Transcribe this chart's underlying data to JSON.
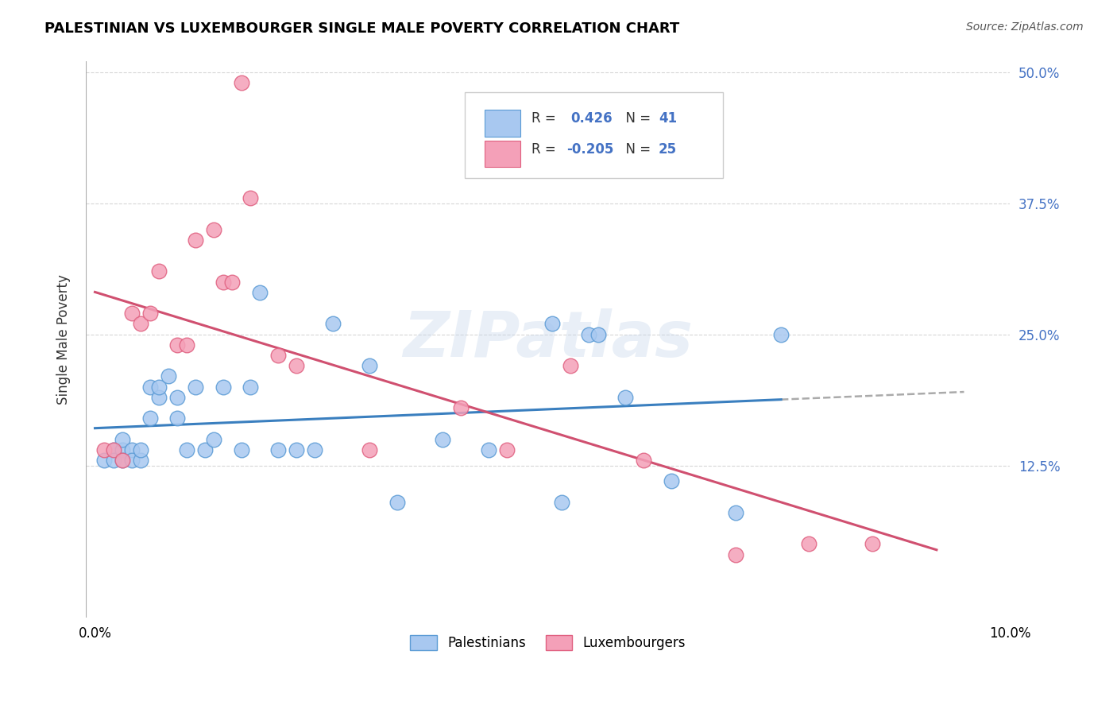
{
  "title": "PALESTINIAN VS LUXEMBOURGER SINGLE MALE POVERTY CORRELATION CHART",
  "source": "Source: ZipAtlas.com",
  "ylabel": "Single Male Poverty",
  "xlim": [
    0.0,
    0.1
  ],
  "ylim": [
    0.0,
    0.5
  ],
  "r_blue": 0.426,
  "n_blue": 41,
  "r_pink": -0.205,
  "n_pink": 25,
  "blue_color": "#A8C8F0",
  "pink_color": "#F4A0B8",
  "blue_edge_color": "#5B9BD5",
  "pink_edge_color": "#E06080",
  "blue_line_color": "#3A7FBF",
  "pink_line_color": "#D05070",
  "dash_color": "#AAAAAA",
  "watermark": "ZIPatlas",
  "legend_labels": [
    "Palestinians",
    "Luxembourgers"
  ],
  "palestinians_x": [
    0.001,
    0.002,
    0.002,
    0.003,
    0.003,
    0.003,
    0.004,
    0.004,
    0.005,
    0.005,
    0.006,
    0.006,
    0.007,
    0.007,
    0.008,
    0.009,
    0.009,
    0.01,
    0.011,
    0.012,
    0.013,
    0.014,
    0.016,
    0.017,
    0.018,
    0.02,
    0.022,
    0.024,
    0.026,
    0.03,
    0.033,
    0.038,
    0.043,
    0.05,
    0.051,
    0.054,
    0.055,
    0.058,
    0.063,
    0.07,
    0.075
  ],
  "palestinians_y": [
    0.13,
    0.14,
    0.13,
    0.14,
    0.13,
    0.15,
    0.14,
    0.13,
    0.13,
    0.14,
    0.2,
    0.17,
    0.19,
    0.2,
    0.21,
    0.17,
    0.19,
    0.14,
    0.2,
    0.14,
    0.15,
    0.2,
    0.14,
    0.2,
    0.29,
    0.14,
    0.14,
    0.14,
    0.26,
    0.22,
    0.09,
    0.15,
    0.14,
    0.26,
    0.09,
    0.25,
    0.25,
    0.19,
    0.11,
    0.08,
    0.25
  ],
  "luxembourgers_x": [
    0.001,
    0.002,
    0.003,
    0.004,
    0.005,
    0.006,
    0.007,
    0.009,
    0.01,
    0.011,
    0.013,
    0.014,
    0.015,
    0.016,
    0.017,
    0.02,
    0.022,
    0.03,
    0.04,
    0.045,
    0.052,
    0.06,
    0.07,
    0.078,
    0.085
  ],
  "luxembourgers_y": [
    0.14,
    0.14,
    0.13,
    0.27,
    0.26,
    0.27,
    0.31,
    0.24,
    0.24,
    0.34,
    0.35,
    0.3,
    0.3,
    0.49,
    0.38,
    0.23,
    0.22,
    0.14,
    0.18,
    0.14,
    0.22,
    0.13,
    0.04,
    0.05,
    0.05
  ],
  "background_color": "#FFFFFF",
  "grid_color": "#CCCCCC",
  "y_tick_vals": [
    0.125,
    0.25,
    0.375,
    0.5
  ],
  "y_tick_labels": [
    "12.5%",
    "25.0%",
    "37.5%",
    "50.0%"
  ],
  "x_tick_vals": [
    0.0,
    0.02,
    0.04,
    0.06,
    0.08,
    0.1
  ],
  "x_tick_labels": [
    "0.0%",
    "",
    "",
    "",
    "",
    "10.0%"
  ],
  "right_axis_color": "#4472C4"
}
